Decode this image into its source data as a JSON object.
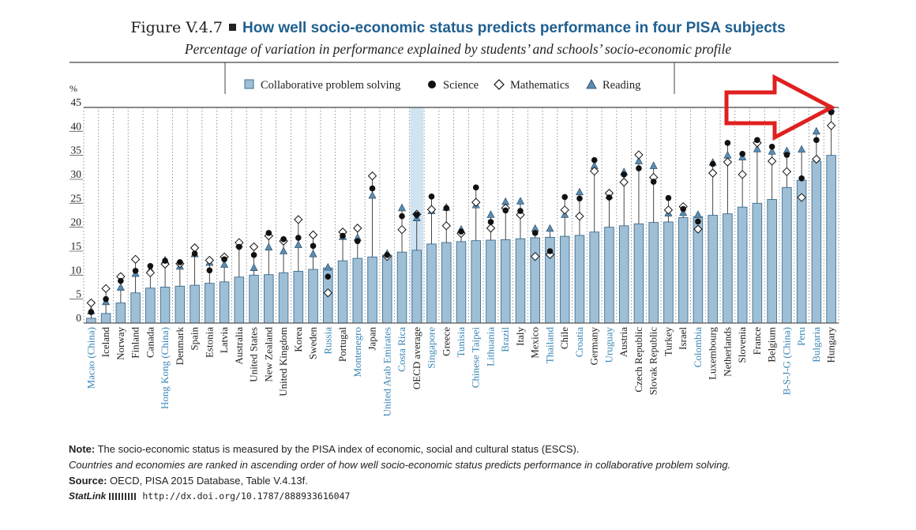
{
  "figure": {
    "label": "Figure V.4.7",
    "title": "How well socio-economic status predicts performance in four PISA subjects",
    "subtitle": "Percentage of variation in performance explained by students’ and schools’ socio-economic profile",
    "note_label": "Note:",
    "note_text": "The socio-economic status is measured by the PISA index of economic, social and cultural status (ESCS).",
    "note_italic": "Countries and economies are ranked in ascending order of how well socio-economic status predicts performance in collaborative problem solving.",
    "source_label": "Source:",
    "source_text": "OECD, PISA 2015 Database, Table V.4.13f.",
    "statlink_label": "StatLink",
    "statlink_url": "http://dx.doi.org/10.1787/888933616047"
  },
  "colors": {
    "bar": "#9fbfd6",
    "bar_stroke": "#3d6f94",
    "oecd_highlight": "#cfe3f1",
    "partner_label": "#3a86b7",
    "reading_marker": "#5b8db3",
    "arrow": "#e0201f",
    "title": "#1f5f8f"
  },
  "chart_data": {
    "type": "bar",
    "ylabel": "%",
    "ylim": [
      0,
      45
    ],
    "yticks": [
      0,
      5,
      10,
      15,
      20,
      25,
      30,
      35,
      40,
      45
    ],
    "grid": "vertical dotted lines between categories",
    "legend_position": "top-center",
    "legend": [
      "Collaborative problem solving",
      "Science",
      "Mathematics",
      "Reading"
    ],
    "categories": [
      "Macao (China)",
      "Iceland",
      "Norway",
      "Finland",
      "Canada",
      "Hong Kong (China)",
      "Denmark",
      "Spain",
      "Estonia",
      "Latvia",
      "Australia",
      "United States",
      "New Zealand",
      "United Kingdom",
      "Korea",
      "Sweden",
      "Russia",
      "Portugal",
      "Montenegro",
      "Japan",
      "United Arab Emirates",
      "Costa Rica",
      "OECD average",
      "Singapore",
      "Greece",
      "Tunisia",
      "Chinese Taipei",
      "Lithuania",
      "Brazil",
      "Italy",
      "Mexico",
      "Thailand",
      "Chile",
      "Croatia",
      "Germany",
      "Uruguay",
      "Austria",
      "Czech Republic",
      "Slovak Republic",
      "Turkey",
      "Israel",
      "Colombia",
      "Luxembourg",
      "Netherlands",
      "Slovenia",
      "France",
      "Belgium",
      "B-S-J-G (China)",
      "Peru",
      "Bulgaria",
      "Hungary"
    ],
    "partner": [
      true,
      false,
      false,
      false,
      false,
      true,
      false,
      false,
      false,
      false,
      false,
      false,
      false,
      false,
      false,
      false,
      true,
      false,
      true,
      false,
      true,
      true,
      false,
      true,
      false,
      true,
      true,
      true,
      true,
      false,
      false,
      true,
      false,
      true,
      false,
      true,
      false,
      false,
      false,
      false,
      false,
      true,
      false,
      false,
      false,
      false,
      false,
      true,
      true,
      true,
      false
    ],
    "series": [
      {
        "name": "Collaborative problem solving",
        "marker": "bar",
        "values": [
          1.0,
          2.0,
          4.2,
          6.3,
          7.3,
          7.5,
          7.7,
          7.9,
          8.3,
          8.6,
          9.6,
          10.0,
          10.1,
          10.5,
          10.8,
          11.2,
          11.5,
          13.0,
          13.5,
          13.8,
          14.2,
          14.8,
          15.2,
          16.5,
          16.8,
          17.0,
          17.2,
          17.3,
          17.4,
          17.6,
          17.8,
          17.9,
          18.1,
          18.3,
          19.0,
          20.0,
          20.3,
          20.7,
          21.0,
          21.1,
          22.0,
          22.2,
          22.5,
          22.8,
          24.2,
          25.0,
          25.8,
          28.3,
          29.8,
          33.8,
          35.0
        ]
      },
      {
        "name": "Science",
        "marker": "circle",
        "values": [
          2.3,
          5.0,
          8.8,
          10.9,
          11.9,
          13.0,
          12.7,
          14.5,
          11.0,
          13.3,
          15.9,
          14.2,
          18.8,
          17.5,
          17.8,
          16.1,
          9.7,
          18.2,
          17.1,
          28.1,
          14.2,
          22.3,
          22.6,
          26.4,
          24.0,
          19.1,
          28.3,
          21.1,
          23.5,
          23.4,
          18.8,
          15.0,
          26.3,
          26.0,
          34.0,
          26.2,
          31.0,
          32.3,
          29.5,
          26.1,
          23.8,
          21.2,
          33.2,
          37.6,
          35.3,
          38.2,
          36.8,
          35.1,
          30.2,
          38.2,
          44.0
        ]
      },
      {
        "name": "Mathematics",
        "marker": "diamond",
        "values": [
          4.2,
          7.2,
          9.7,
          13.3,
          10.5,
          12.3,
          12.4,
          15.7,
          13.1,
          13.8,
          16.8,
          15.9,
          18.2,
          17.1,
          21.6,
          18.4,
          6.3,
          19.0,
          19.8,
          30.7,
          13.9,
          19.5,
          22.7,
          23.7,
          20.3,
          18.7,
          25.2,
          19.8,
          24.0,
          22.6,
          13.9,
          14.3,
          23.6,
          22.3,
          31.7,
          27.1,
          29.4,
          35.1,
          30.4,
          23.6,
          24.3,
          19.6,
          31.3,
          33.6,
          31.0,
          37.6,
          33.8,
          31.6,
          26.2,
          34.2,
          41.2
        ]
      },
      {
        "name": "Reading",
        "marker": "triangle",
        "values": [
          2.5,
          4.4,
          7.4,
          10.3,
          11.1,
          13.1,
          11.8,
          14.4,
          12.6,
          12.2,
          16.4,
          11.5,
          15.8,
          15.0,
          16.3,
          14.4,
          11.6,
          18.0,
          17.8,
          26.6,
          14.5,
          24.0,
          21.9,
          23.4,
          24.1,
          19.5,
          24.6,
          22.6,
          25.3,
          25.4,
          19.7,
          19.7,
          22.6,
          27.3,
          32.8,
          26.6,
          31.5,
          33.8,
          32.8,
          22.9,
          23.0,
          22.6,
          33.5,
          35.0,
          34.6,
          36.3,
          35.8,
          35.9,
          36.2,
          40.0,
          44.7
        ]
      }
    ]
  }
}
